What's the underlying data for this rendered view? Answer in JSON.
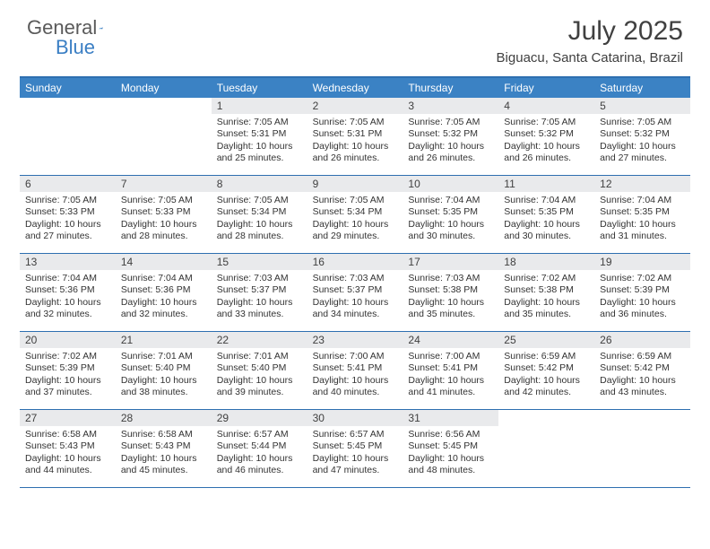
{
  "logo": {
    "general": "General",
    "blue": "Blue"
  },
  "title": "July 2025",
  "subtitle": "Biguacu, Santa Catarina, Brazil",
  "colors": {
    "header_bar": "#3b82c4",
    "header_border": "#2e6fb0",
    "daynum_bg": "#e9eaec",
    "text": "#333333",
    "logo_gray": "#5a5a5a",
    "logo_blue": "#3b7fc4"
  },
  "weekdays": [
    "Sunday",
    "Monday",
    "Tuesday",
    "Wednesday",
    "Thursday",
    "Friday",
    "Saturday"
  ],
  "weeks": [
    [
      {
        "empty": true
      },
      {
        "empty": true
      },
      {
        "day": "1",
        "sunrise": "Sunrise: 7:05 AM",
        "sunset": "Sunset: 5:31 PM",
        "daylight": "Daylight: 10 hours and 25 minutes."
      },
      {
        "day": "2",
        "sunrise": "Sunrise: 7:05 AM",
        "sunset": "Sunset: 5:31 PM",
        "daylight": "Daylight: 10 hours and 26 minutes."
      },
      {
        "day": "3",
        "sunrise": "Sunrise: 7:05 AM",
        "sunset": "Sunset: 5:32 PM",
        "daylight": "Daylight: 10 hours and 26 minutes."
      },
      {
        "day": "4",
        "sunrise": "Sunrise: 7:05 AM",
        "sunset": "Sunset: 5:32 PM",
        "daylight": "Daylight: 10 hours and 26 minutes."
      },
      {
        "day": "5",
        "sunrise": "Sunrise: 7:05 AM",
        "sunset": "Sunset: 5:32 PM",
        "daylight": "Daylight: 10 hours and 27 minutes."
      }
    ],
    [
      {
        "day": "6",
        "sunrise": "Sunrise: 7:05 AM",
        "sunset": "Sunset: 5:33 PM",
        "daylight": "Daylight: 10 hours and 27 minutes."
      },
      {
        "day": "7",
        "sunrise": "Sunrise: 7:05 AM",
        "sunset": "Sunset: 5:33 PM",
        "daylight": "Daylight: 10 hours and 28 minutes."
      },
      {
        "day": "8",
        "sunrise": "Sunrise: 7:05 AM",
        "sunset": "Sunset: 5:34 PM",
        "daylight": "Daylight: 10 hours and 28 minutes."
      },
      {
        "day": "9",
        "sunrise": "Sunrise: 7:05 AM",
        "sunset": "Sunset: 5:34 PM",
        "daylight": "Daylight: 10 hours and 29 minutes."
      },
      {
        "day": "10",
        "sunrise": "Sunrise: 7:04 AM",
        "sunset": "Sunset: 5:35 PM",
        "daylight": "Daylight: 10 hours and 30 minutes."
      },
      {
        "day": "11",
        "sunrise": "Sunrise: 7:04 AM",
        "sunset": "Sunset: 5:35 PM",
        "daylight": "Daylight: 10 hours and 30 minutes."
      },
      {
        "day": "12",
        "sunrise": "Sunrise: 7:04 AM",
        "sunset": "Sunset: 5:35 PM",
        "daylight": "Daylight: 10 hours and 31 minutes."
      }
    ],
    [
      {
        "day": "13",
        "sunrise": "Sunrise: 7:04 AM",
        "sunset": "Sunset: 5:36 PM",
        "daylight": "Daylight: 10 hours and 32 minutes."
      },
      {
        "day": "14",
        "sunrise": "Sunrise: 7:04 AM",
        "sunset": "Sunset: 5:36 PM",
        "daylight": "Daylight: 10 hours and 32 minutes."
      },
      {
        "day": "15",
        "sunrise": "Sunrise: 7:03 AM",
        "sunset": "Sunset: 5:37 PM",
        "daylight": "Daylight: 10 hours and 33 minutes."
      },
      {
        "day": "16",
        "sunrise": "Sunrise: 7:03 AM",
        "sunset": "Sunset: 5:37 PM",
        "daylight": "Daylight: 10 hours and 34 minutes."
      },
      {
        "day": "17",
        "sunrise": "Sunrise: 7:03 AM",
        "sunset": "Sunset: 5:38 PM",
        "daylight": "Daylight: 10 hours and 35 minutes."
      },
      {
        "day": "18",
        "sunrise": "Sunrise: 7:02 AM",
        "sunset": "Sunset: 5:38 PM",
        "daylight": "Daylight: 10 hours and 35 minutes."
      },
      {
        "day": "19",
        "sunrise": "Sunrise: 7:02 AM",
        "sunset": "Sunset: 5:39 PM",
        "daylight": "Daylight: 10 hours and 36 minutes."
      }
    ],
    [
      {
        "day": "20",
        "sunrise": "Sunrise: 7:02 AM",
        "sunset": "Sunset: 5:39 PM",
        "daylight": "Daylight: 10 hours and 37 minutes."
      },
      {
        "day": "21",
        "sunrise": "Sunrise: 7:01 AM",
        "sunset": "Sunset: 5:40 PM",
        "daylight": "Daylight: 10 hours and 38 minutes."
      },
      {
        "day": "22",
        "sunrise": "Sunrise: 7:01 AM",
        "sunset": "Sunset: 5:40 PM",
        "daylight": "Daylight: 10 hours and 39 minutes."
      },
      {
        "day": "23",
        "sunrise": "Sunrise: 7:00 AM",
        "sunset": "Sunset: 5:41 PM",
        "daylight": "Daylight: 10 hours and 40 minutes."
      },
      {
        "day": "24",
        "sunrise": "Sunrise: 7:00 AM",
        "sunset": "Sunset: 5:41 PM",
        "daylight": "Daylight: 10 hours and 41 minutes."
      },
      {
        "day": "25",
        "sunrise": "Sunrise: 6:59 AM",
        "sunset": "Sunset: 5:42 PM",
        "daylight": "Daylight: 10 hours and 42 minutes."
      },
      {
        "day": "26",
        "sunrise": "Sunrise: 6:59 AM",
        "sunset": "Sunset: 5:42 PM",
        "daylight": "Daylight: 10 hours and 43 minutes."
      }
    ],
    [
      {
        "day": "27",
        "sunrise": "Sunrise: 6:58 AM",
        "sunset": "Sunset: 5:43 PM",
        "daylight": "Daylight: 10 hours and 44 minutes."
      },
      {
        "day": "28",
        "sunrise": "Sunrise: 6:58 AM",
        "sunset": "Sunset: 5:43 PM",
        "daylight": "Daylight: 10 hours and 45 minutes."
      },
      {
        "day": "29",
        "sunrise": "Sunrise: 6:57 AM",
        "sunset": "Sunset: 5:44 PM",
        "daylight": "Daylight: 10 hours and 46 minutes."
      },
      {
        "day": "30",
        "sunrise": "Sunrise: 6:57 AM",
        "sunset": "Sunset: 5:45 PM",
        "daylight": "Daylight: 10 hours and 47 minutes."
      },
      {
        "day": "31",
        "sunrise": "Sunrise: 6:56 AM",
        "sunset": "Sunset: 5:45 PM",
        "daylight": "Daylight: 10 hours and 48 minutes."
      },
      {
        "empty": true
      },
      {
        "empty": true
      }
    ]
  ]
}
